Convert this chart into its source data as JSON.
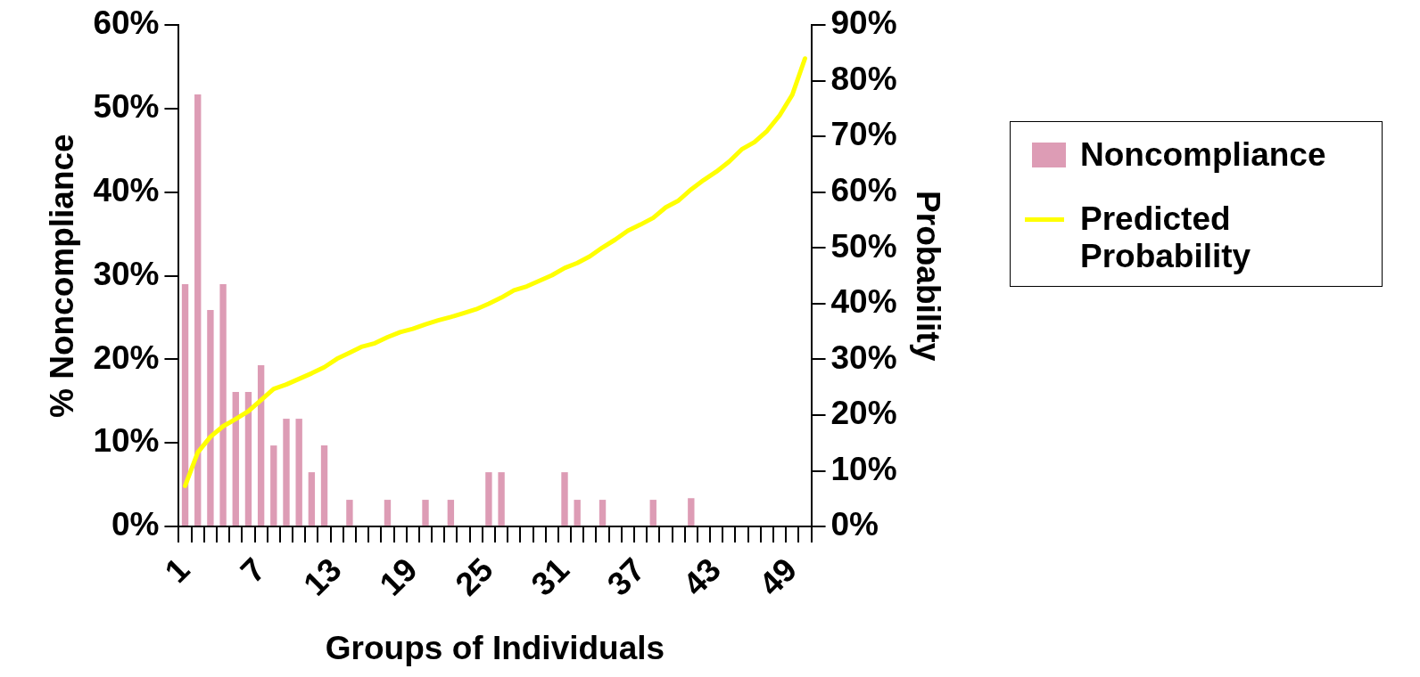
{
  "chart_data": {
    "type": "bar",
    "xlabel": "Groups of Individuals",
    "ylabel": "% Noncompliance",
    "y2label": "Probability",
    "categories": [
      "1",
      null,
      null,
      null,
      null,
      null,
      "7",
      null,
      null,
      null,
      null,
      null,
      "13",
      null,
      null,
      null,
      null,
      null,
      "19",
      null,
      null,
      null,
      null,
      null,
      "25",
      null,
      null,
      null,
      null,
      null,
      "31",
      null,
      null,
      null,
      null,
      null,
      "37",
      null,
      null,
      null,
      null,
      null,
      "43",
      null,
      null,
      null,
      null,
      null,
      "49",
      null
    ],
    "ylim": [
      0,
      60
    ],
    "yticks": [
      {
        "value": 0,
        "label": "0%"
      },
      {
        "value": 10,
        "label": "10%"
      },
      {
        "value": 20,
        "label": "20%"
      },
      {
        "value": 30,
        "label": "30%"
      },
      {
        "value": 40,
        "label": "40%"
      },
      {
        "value": 50,
        "label": "50%"
      },
      {
        "value": 60,
        "label": "60%"
      }
    ],
    "y2lim": [
      0,
      90
    ],
    "y2ticks": [
      {
        "value": 0,
        "label": "0%"
      },
      {
        "value": 10,
        "label": "10%"
      },
      {
        "value": 20,
        "label": "20%"
      },
      {
        "value": 30,
        "label": "30%"
      },
      {
        "value": 40,
        "label": "40%"
      },
      {
        "value": 50,
        "label": "50%"
      },
      {
        "value": 60,
        "label": "60%"
      },
      {
        "value": 70,
        "label": "70%"
      },
      {
        "value": 80,
        "label": "80%"
      },
      {
        "value": 90,
        "label": "90%"
      }
    ],
    "legend": "right",
    "marker": "none",
    "series": [
      {
        "name": "Noncompliance",
        "color": "#dd9cb5",
        "values": [
          29,
          51.7,
          25.9,
          29,
          16.1,
          16.1,
          19.3,
          9.7,
          12.9,
          12.9,
          6.5,
          9.7,
          0,
          3.2,
          0,
          0,
          3.2,
          0,
          0,
          3.2,
          0,
          3.2,
          0,
          0,
          6.5,
          6.5,
          0,
          0,
          0,
          0,
          6.5,
          3.2,
          0,
          3.2,
          0,
          0,
          0,
          3.2,
          0,
          0,
          3.4,
          0,
          0,
          0,
          0,
          0,
          0,
          0,
          0,
          0
        ]
      },
      {
        "name": "Predicted Probability",
        "type": "line",
        "axis": "y2",
        "color": "#ffff00",
        "values": [
          7.3,
          13.3,
          16.1,
          18,
          19.3,
          20.7,
          22.7,
          24.7,
          25.5,
          26.5,
          27.5,
          28.6,
          30.1,
          31.2,
          32.3,
          32.9,
          34,
          34.9,
          35.5,
          36.3,
          37,
          37.6,
          38.3,
          39,
          40,
          41.1,
          42.4,
          43.1,
          44.1,
          45.1,
          46.4,
          47.3,
          48.5,
          50.1,
          51.5,
          53.1,
          54.2,
          55.4,
          57.3,
          58.5,
          60.5,
          62.2,
          63.7,
          65.5,
          67.7,
          69,
          71,
          73.8,
          77.5,
          84
        ]
      }
    ]
  }
}
